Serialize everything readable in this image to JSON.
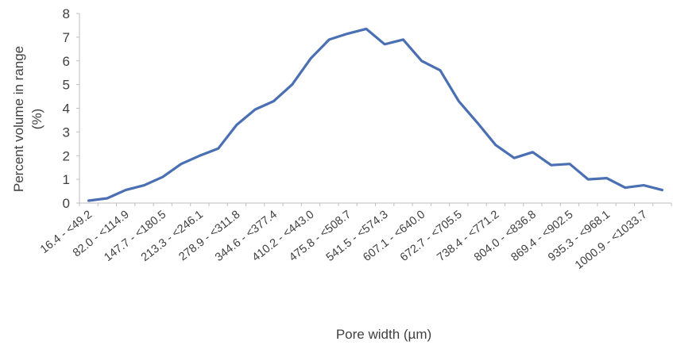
{
  "chart_data": {
    "type": "line",
    "title": "",
    "xlabel": "Pore width (µm)",
    "ylabel_line1": "Percent volume in range",
    "ylabel_line2": "(%)",
    "ylim": [
      0,
      8
    ],
    "y_ticks": [
      0,
      1,
      2,
      3,
      4,
      5,
      6,
      7,
      8
    ],
    "grid": false,
    "legend": "none",
    "color": "#4a6fb2",
    "x_tick_labels": [
      "16.4 - <49.2",
      "82.0 - <114.9",
      "147.7 - <180.5",
      "213.3 - <246.1",
      "278.9 - <311.8",
      "344.6 - <377.4",
      "410.2 - <443.0",
      "475.8 - <508.7",
      "541.5 - <574.3",
      "607.1 - <640.0",
      "672.7 - <705.5",
      "738.4 - <771.2",
      "804.0 - <836.8",
      "869.4 - <902.5",
      "935.3 - <968.1",
      "1000.9 - <1033.7"
    ],
    "series": [
      {
        "values": [
          0.1,
          0.2,
          0.55,
          0.75,
          1.1,
          1.65,
          2.0,
          2.3,
          3.3,
          3.95,
          4.3,
          5.0,
          6.1,
          6.9,
          7.15,
          7.35,
          6.7,
          6.9,
          6.0,
          5.6,
          4.3,
          3.4,
          2.45,
          1.9,
          2.15,
          1.6,
          1.65,
          1.0,
          1.05,
          0.65,
          0.75,
          0.55
        ]
      }
    ]
  }
}
